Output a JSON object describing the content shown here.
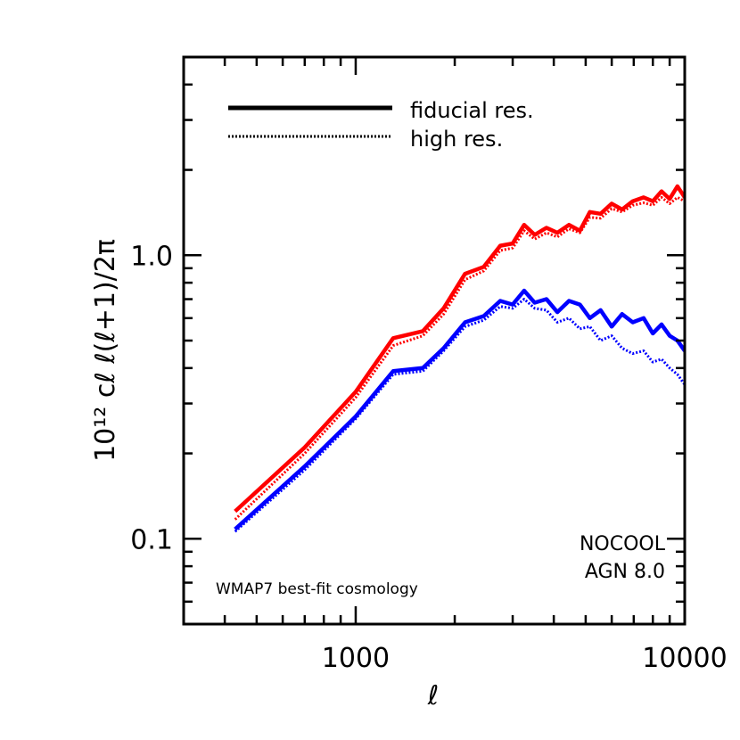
{
  "chart_data": {
    "type": "line",
    "title": "",
    "xlabel": "ℓ",
    "ylabel": "10¹² cℓ ℓ(ℓ+1)/2π",
    "xscale": "log",
    "yscale": "log",
    "xlim": [
      300,
      10000
    ],
    "ylim": [
      0.05,
      5
    ],
    "x_tick_labels": [
      {
        "value": 1000,
        "label": "1000"
      },
      {
        "value": 10000,
        "label": "10000"
      }
    ],
    "y_tick_labels": [
      {
        "value": 0.1,
        "label": "0.1"
      },
      {
        "value": 1.0,
        "label": "1.0"
      }
    ],
    "linestyle_legend": [
      {
        "style": "solid",
        "label": "fiducial res."
      },
      {
        "style": "dotted",
        "label": "high res."
      }
    ],
    "annotation": "WMAP7 best-fit cosmology",
    "series": [
      {
        "name": "NOCOOL",
        "color": "#ff0000",
        "style": "solid",
        "x": [
          430,
          700,
          1000,
          1300,
          1600,
          1850,
          2150,
          2450,
          2750,
          3000,
          3250,
          3500,
          3800,
          4100,
          4450,
          4800,
          5150,
          5550,
          6000,
          6450,
          6950,
          7500,
          8000,
          8500,
          9000,
          9500,
          10000
        ],
        "y": [
          0.125,
          0.21,
          0.33,
          0.51,
          0.54,
          0.65,
          0.86,
          0.91,
          1.08,
          1.1,
          1.28,
          1.18,
          1.25,
          1.2,
          1.28,
          1.22,
          1.42,
          1.4,
          1.52,
          1.45,
          1.55,
          1.6,
          1.55,
          1.68,
          1.58,
          1.75,
          1.6
        ]
      },
      {
        "name": "NOCOOL",
        "color": "#ff0000",
        "style": "dotted",
        "x": [
          430,
          700,
          1000,
          1300,
          1600,
          1850,
          2150,
          2450,
          2750,
          3000,
          3250,
          3500,
          3800,
          4100,
          4450,
          4800,
          5150,
          5550,
          6000,
          6450,
          6950,
          7500,
          8000,
          8500,
          9000,
          9500,
          10000
        ],
        "y": [
          0.117,
          0.2,
          0.315,
          0.48,
          0.52,
          0.62,
          0.82,
          0.88,
          1.04,
          1.06,
          1.22,
          1.14,
          1.2,
          1.16,
          1.24,
          1.2,
          1.36,
          1.35,
          1.46,
          1.42,
          1.5,
          1.53,
          1.5,
          1.6,
          1.52,
          1.6,
          1.55
        ]
      },
      {
        "name": "AGN 8.0",
        "color": "#0000ff",
        "style": "solid",
        "x": [
          430,
          700,
          1000,
          1300,
          1600,
          1850,
          2150,
          2450,
          2750,
          3000,
          3250,
          3500,
          3800,
          4100,
          4450,
          4800,
          5150,
          5550,
          6000,
          6450,
          6950,
          7500,
          8000,
          8500,
          9000,
          9500,
          10000
        ],
        "y": [
          0.108,
          0.18,
          0.27,
          0.39,
          0.4,
          0.47,
          0.58,
          0.61,
          0.69,
          0.67,
          0.75,
          0.68,
          0.7,
          0.63,
          0.69,
          0.67,
          0.6,
          0.64,
          0.56,
          0.62,
          0.58,
          0.6,
          0.53,
          0.57,
          0.52,
          0.5,
          0.46
        ]
      },
      {
        "name": "AGN 8.0",
        "color": "#0000ff",
        "style": "dotted",
        "x": [
          430,
          700,
          1000,
          1300,
          1600,
          1850,
          2150,
          2450,
          2750,
          3000,
          3250,
          3500,
          3800,
          4100,
          4450,
          4800,
          5150,
          5550,
          6000,
          6450,
          6950,
          7500,
          8000,
          8500,
          9000,
          9500,
          10000
        ],
        "y": [
          0.106,
          0.175,
          0.265,
          0.38,
          0.39,
          0.46,
          0.56,
          0.59,
          0.66,
          0.65,
          0.7,
          0.65,
          0.64,
          0.58,
          0.6,
          0.55,
          0.56,
          0.5,
          0.52,
          0.47,
          0.45,
          0.46,
          0.42,
          0.43,
          0.4,
          0.38,
          0.35
        ]
      }
    ],
    "series_labels": [
      {
        "text": "NOCOOL",
        "color": "#ff0000"
      },
      {
        "text": "AGN 8.0",
        "color": "#0000ff"
      }
    ]
  }
}
